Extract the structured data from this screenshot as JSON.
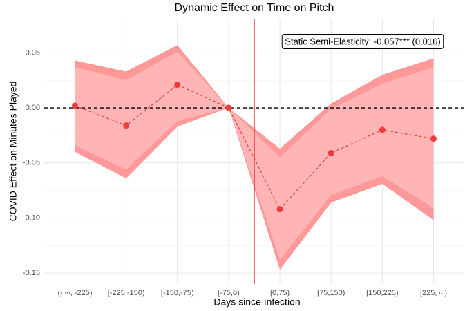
{
  "chart_data": {
    "type": "line",
    "title": "Dynamic Effect on Time on Pitch",
    "x_label": "Days since Infection",
    "y_label": "COVID Effect on Minutes Played",
    "annotation": "Static Semi-Elasticity: -0.057*** (0.016)",
    "categories": [
      "(- ∞, -225)",
      "[-225,-150)",
      "[-150,-75)",
      "[-75,0)",
      "[0,75)",
      "[75,150)",
      "[150,225)",
      "[225, ∞)"
    ],
    "values": [
      0.002,
      -0.016,
      0.021,
      0.0,
      -0.092,
      -0.041,
      -0.02,
      -0.028
    ],
    "band_outer_upper": [
      0.043,
      0.033,
      0.057,
      0.0,
      -0.037,
      0.004,
      0.03,
      0.045
    ],
    "band_outer_lower": [
      -0.04,
      -0.064,
      -0.017,
      0.0,
      -0.147,
      -0.086,
      -0.069,
      -0.102
    ],
    "band_inner_upper": [
      0.037,
      0.025,
      0.051,
      0.0,
      -0.045,
      -0.001,
      0.022,
      0.037
    ],
    "band_inner_lower": [
      -0.034,
      -0.056,
      -0.012,
      0.0,
      -0.138,
      -0.079,
      -0.062,
      -0.091
    ],
    "color": "#f03b3b",
    "band_outer_color": "#ff9999",
    "band_inner_color": "#ffb5b5",
    "vline_at": 3.5,
    "vline_color": "#f03b3b",
    "hline_at": 0,
    "ylim": [
      -0.16,
      0.081
    ],
    "yticks": [
      {
        "value": -0.15,
        "label": "-0.15"
      },
      {
        "value": -0.1,
        "label": "-0.10"
      },
      {
        "value": -0.05,
        "label": "-0.05"
      },
      {
        "value": 0,
        "label": "0.00"
      },
      {
        "value": 0.05,
        "label": "0.05"
      }
    ],
    "grid": true
  }
}
